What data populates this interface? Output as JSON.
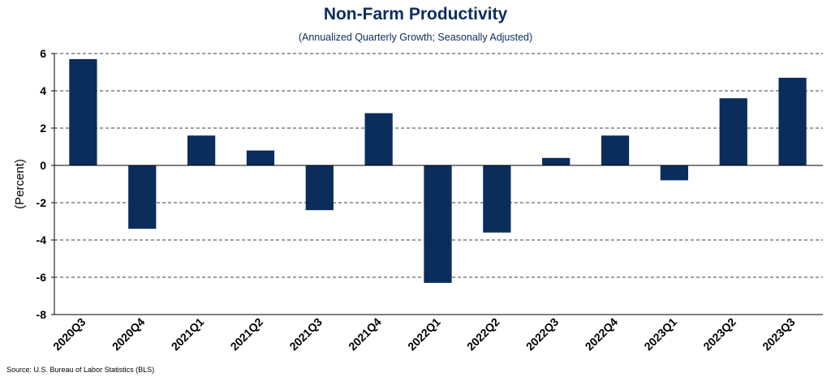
{
  "chart_data": {
    "type": "bar",
    "title": "Non-Farm Productivity",
    "subtitle": "(Annualized Quarterly Growth; Seasonally Adjusted)",
    "ylabel": "(Percent)",
    "xlabel": "",
    "source": "Source: U.S. Bureau of Labor Statistics (BLS)",
    "categories": [
      "2020Q3",
      "2020Q4",
      "2021Q1",
      "2021Q2",
      "2021Q3",
      "2021Q4",
      "2022Q1",
      "2022Q2",
      "2022Q3",
      "2022Q4",
      "2023Q1",
      "2023Q2",
      "2023Q3"
    ],
    "values": [
      5.7,
      -3.4,
      1.6,
      0.8,
      -2.4,
      2.8,
      -6.3,
      -3.6,
      0.4,
      1.6,
      -0.8,
      3.6,
      4.7
    ],
    "ylim": [
      -8,
      6
    ],
    "yticks": [
      6,
      4,
      2,
      0,
      -2,
      -4,
      -6,
      -8
    ],
    "grid": true,
    "legend": "none",
    "bar_color": "#0b2d5b"
  }
}
